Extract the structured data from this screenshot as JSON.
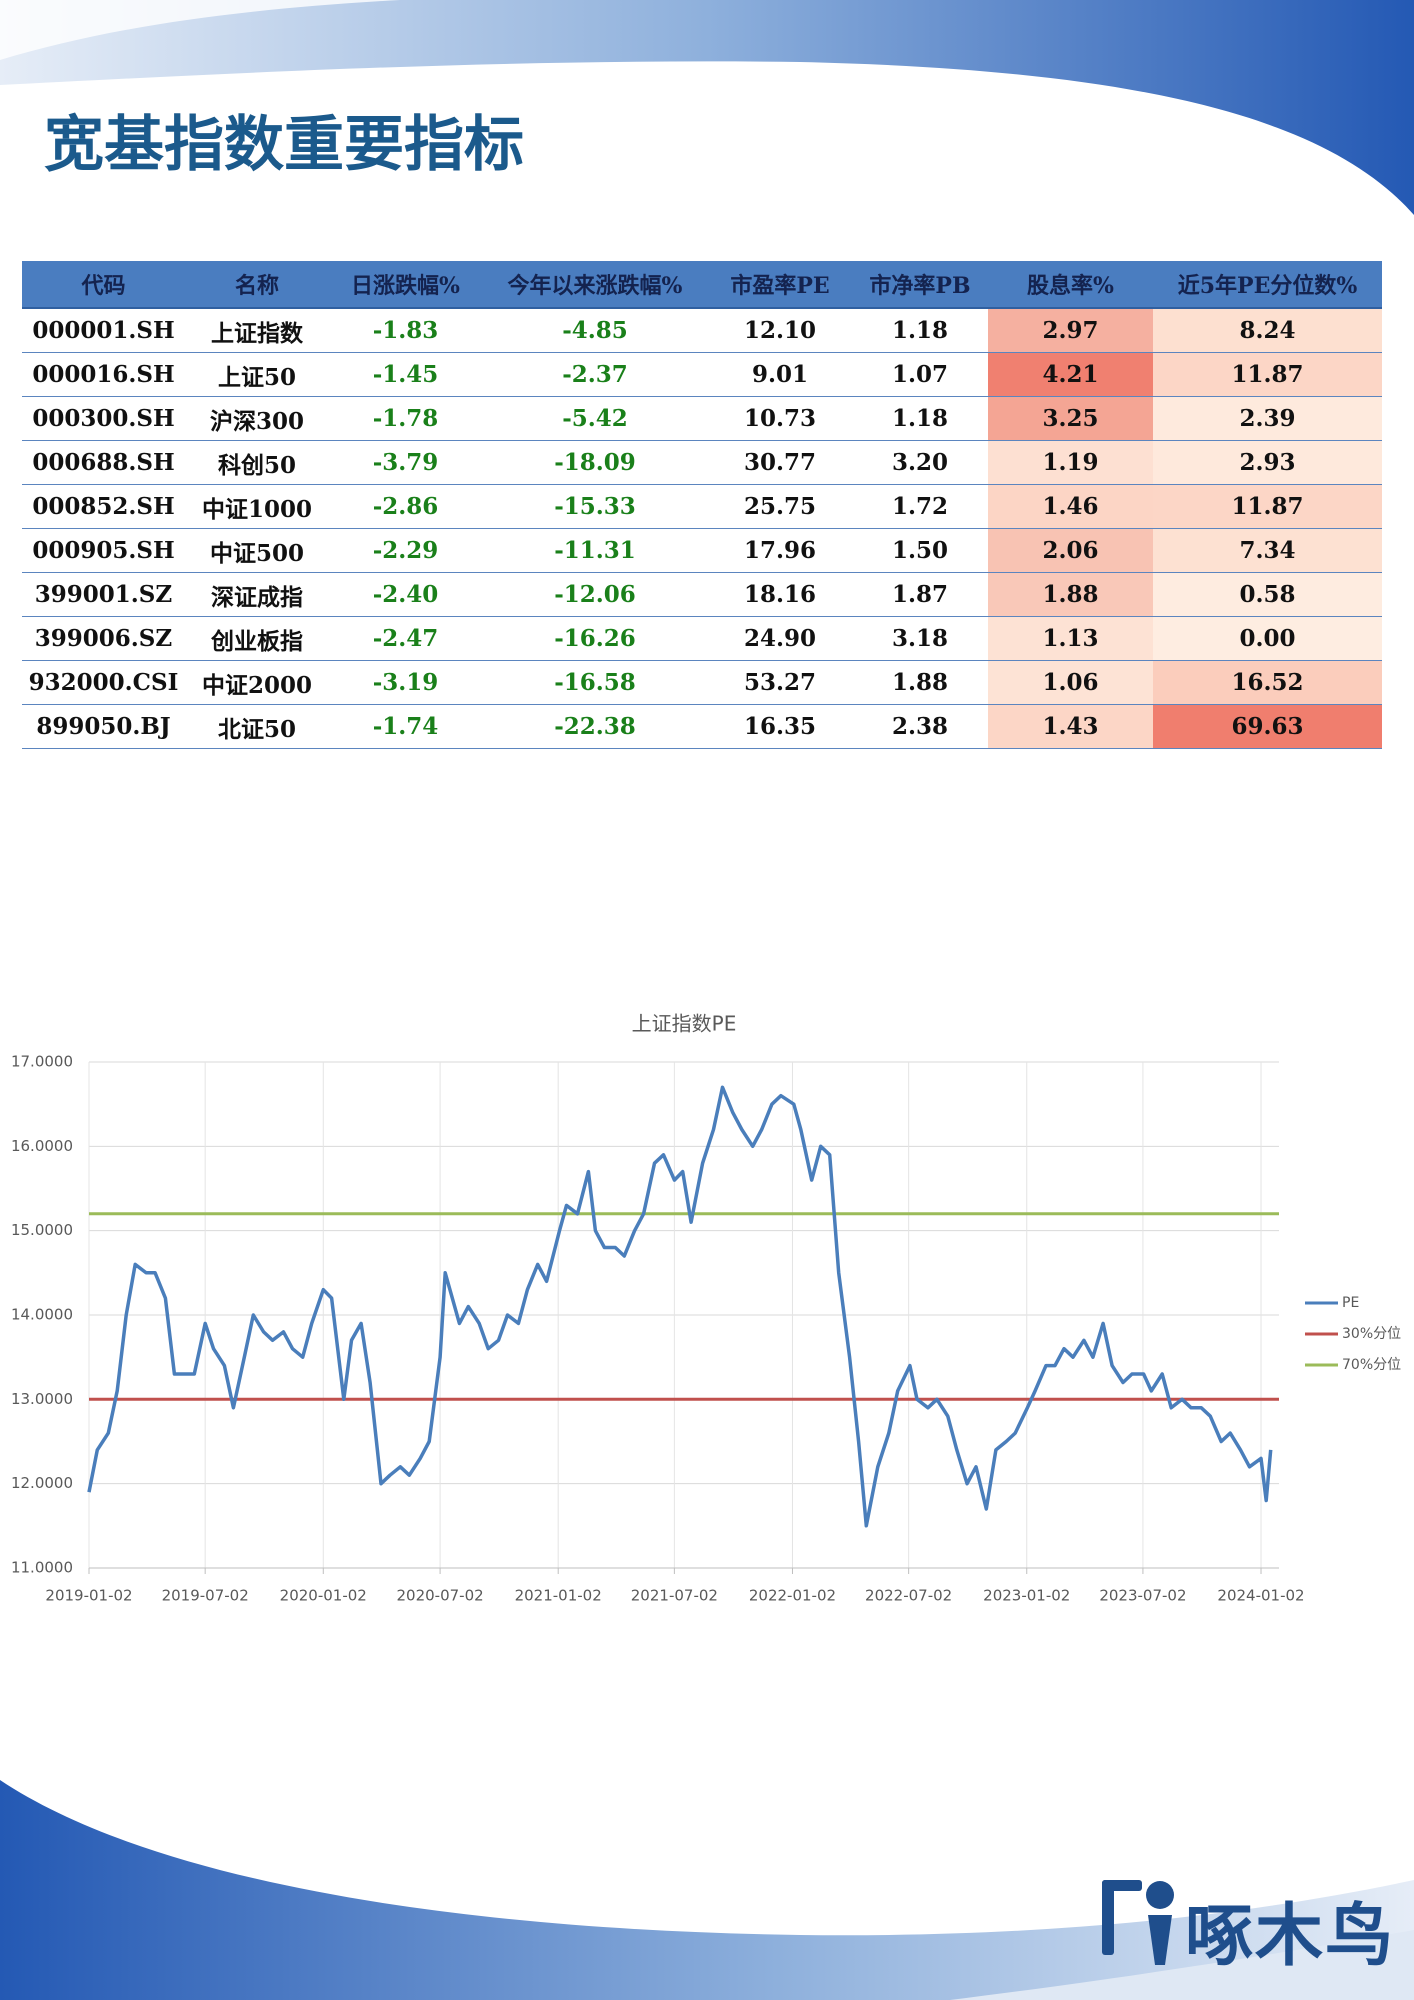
{
  "title": "宽基指数重要指标",
  "logo": "啄木鸟",
  "table": {
    "header": [
      "代码",
      "名称",
      "日涨跌幅%",
      "今年以来涨跌幅%",
      "市盈率PE",
      "市净率PB",
      "股息率%",
      "近5年PE分位数%"
    ],
    "rows": [
      [
        "000001.SH",
        "上证指数",
        "-1.83",
        "-4.85",
        "12.10",
        "1.18",
        "2.97",
        "8.24"
      ],
      [
        "000016.SH",
        "上证50",
        "-1.45",
        "-2.37",
        "9.01",
        "1.07",
        "4.21",
        "11.87"
      ],
      [
        "000300.SH",
        "沪深300",
        "-1.78",
        "-5.42",
        "10.73",
        "1.18",
        "3.25",
        "2.39"
      ],
      [
        "000688.SH",
        "科创50",
        "-3.79",
        "-18.09",
        "30.77",
        "3.20",
        "1.19",
        "2.93"
      ],
      [
        "000852.SH",
        "中证1000",
        "-2.86",
        "-15.33",
        "25.75",
        "1.72",
        "1.46",
        "11.87"
      ],
      [
        "000905.SH",
        "中证500",
        "-2.29",
        "-11.31",
        "17.96",
        "1.50",
        "2.06",
        "7.34"
      ],
      [
        "399001.SZ",
        "深证成指",
        "-2.40",
        "-12.06",
        "18.16",
        "1.87",
        "1.88",
        "0.58"
      ],
      [
        "399006.SZ",
        "创业板指",
        "-2.47",
        "-16.26",
        "24.90",
        "3.18",
        "1.13",
        "0.00"
      ],
      [
        "932000.CSI",
        "中证2000",
        "-3.19",
        "-16.58",
        "53.27",
        "1.88",
        "1.06",
        "16.52"
      ],
      [
        "899050.BJ",
        "北证50",
        "-1.74",
        "-22.38",
        "16.35",
        "2.38",
        "1.43",
        "69.63"
      ]
    ],
    "heat_colors": [
      [
        "#f5b0a0",
        "#fde0d0"
      ],
      [
        "#f08070",
        "#fcd6c6"
      ],
      [
        "#f4a594",
        "#feeadd"
      ],
      [
        "#fde0d2",
        "#fee9dc"
      ],
      [
        "#fcd5c5",
        "#fcd6c6"
      ],
      [
        "#f8c3b3",
        "#fde1d2"
      ],
      [
        "#f9c8b8",
        "#feece0"
      ],
      [
        "#fde2d4",
        "#feede1"
      ],
      [
        "#fde3d5",
        "#fbcdbc"
      ],
      [
        "#fcd6c6",
        "#f07e6e"
      ]
    ]
  },
  "chart_data": {
    "type": "line",
    "title": "上证指数PE",
    "xlim": [
      "2019-01-02",
      "2024-01-30"
    ],
    "xticks": [
      "2019-01-02",
      "2019-07-02",
      "2020-01-02",
      "2020-07-02",
      "2021-01-02",
      "2021-07-02",
      "2022-01-02",
      "2022-07-02",
      "2023-01-02",
      "2023-07-02",
      "2024-01-02"
    ],
    "ylim": [
      11,
      17
    ],
    "yticks": [
      {
        "value": 11,
        "label": "11.0000"
      },
      {
        "value": 12,
        "label": "12.0000"
      },
      {
        "value": 13,
        "label": "13.0000"
      },
      {
        "value": 14,
        "label": "14.0000"
      },
      {
        "value": 15,
        "label": "15.0000"
      },
      {
        "value": 16,
        "label": "16.0000"
      },
      {
        "value": 17,
        "label": "17.0000"
      }
    ],
    "grid": true,
    "legend": "right",
    "series": [
      {
        "name": "PE",
        "color": "#4a7ebb",
        "x": [
          "2019-01-02",
          "2019-01-15",
          "2019-02-01",
          "2019-02-15",
          "2019-03-01",
          "2019-03-15",
          "2019-04-01",
          "2019-04-15",
          "2019-05-01",
          "2019-05-15",
          "2019-06-01",
          "2019-06-15",
          "2019-07-02",
          "2019-07-15",
          "2019-08-01",
          "2019-08-15",
          "2019-09-01",
          "2019-09-15",
          "2019-10-01",
          "2019-10-15",
          "2019-11-01",
          "2019-11-15",
          "2019-12-01",
          "2019-12-15",
          "2020-01-02",
          "2020-01-15",
          "2020-02-03",
          "2020-02-15",
          "2020-03-01",
          "2020-03-15",
          "2020-04-01",
          "2020-04-15",
          "2020-05-01",
          "2020-05-15",
          "2020-06-01",
          "2020-06-15",
          "2020-07-02",
          "2020-07-10",
          "2020-08-01",
          "2020-08-15",
          "2020-09-01",
          "2020-09-15",
          "2020-10-01",
          "2020-10-15",
          "2020-11-01",
          "2020-11-15",
          "2020-12-01",
          "2020-12-15",
          "2021-01-04",
          "2021-01-15",
          "2021-02-01",
          "2021-02-18",
          "2021-03-01",
          "2021-03-15",
          "2021-04-01",
          "2021-04-15",
          "2021-05-01",
          "2021-05-15",
          "2021-06-01",
          "2021-06-15",
          "2021-07-02",
          "2021-07-15",
          "2021-07-28",
          "2021-08-15",
          "2021-09-01",
          "2021-09-15",
          "2021-10-01",
          "2021-10-15",
          "2021-11-01",
          "2021-11-15",
          "2021-12-01",
          "2021-12-15",
          "2022-01-04",
          "2022-01-15",
          "2022-02-01",
          "2022-02-15",
          "2022-03-01",
          "2022-03-15",
          "2022-04-01",
          "2022-04-15",
          "2022-04-27",
          "2022-05-15",
          "2022-06-01",
          "2022-06-15",
          "2022-07-04",
          "2022-07-15",
          "2022-08-01",
          "2022-08-15",
          "2022-09-01",
          "2022-09-15",
          "2022-10-01",
          "2022-10-15",
          "2022-10-31",
          "2022-11-15",
          "2022-12-01",
          "2022-12-15",
          "2023-01-03",
          "2023-01-15",
          "2023-02-01",
          "2023-02-15",
          "2023-03-01",
          "2023-03-15",
          "2023-04-01",
          "2023-04-15",
          "2023-05-01",
          "2023-05-15",
          "2023-06-01",
          "2023-06-15",
          "2023-07-03",
          "2023-07-15",
          "2023-08-01",
          "2023-08-15",
          "2023-09-01",
          "2023-09-15",
          "2023-10-01",
          "2023-10-15",
          "2023-11-01",
          "2023-11-15",
          "2023-12-01",
          "2023-12-15",
          "2024-01-02",
          "2024-01-10",
          "2024-01-17"
        ],
        "values": [
          11.9,
          12.4,
          12.6,
          13.1,
          14.0,
          14.6,
          14.5,
          14.5,
          14.2,
          13.3,
          13.3,
          13.3,
          13.9,
          13.6,
          13.4,
          12.9,
          13.5,
          14.0,
          13.8,
          13.7,
          13.8,
          13.6,
          13.5,
          13.9,
          14.3,
          14.2,
          13.0,
          13.7,
          13.9,
          13.2,
          12.0,
          12.1,
          12.2,
          12.1,
          12.3,
          12.5,
          13.5,
          14.5,
          13.9,
          14.1,
          13.9,
          13.6,
          13.7,
          14.0,
          13.9,
          14.3,
          14.6,
          14.4,
          15.0,
          15.3,
          15.2,
          15.7,
          15.0,
          14.8,
          14.8,
          14.7,
          15.0,
          15.2,
          15.8,
          15.9,
          15.6,
          15.7,
          15.1,
          15.8,
          16.2,
          16.7,
          16.4,
          16.2,
          16.0,
          16.2,
          16.5,
          16.6,
          16.5,
          16.2,
          15.6,
          16.0,
          15.9,
          14.5,
          13.5,
          12.5,
          11.5,
          12.2,
          12.6,
          13.1,
          13.4,
          13.0,
          12.9,
          13.0,
          12.8,
          12.4,
          12.0,
          12.2,
          11.7,
          12.4,
          12.5,
          12.6,
          12.9,
          13.1,
          13.4,
          13.4,
          13.6,
          13.5,
          13.7,
          13.5,
          13.9,
          13.4,
          13.2,
          13.3,
          13.3,
          13.1,
          13.3,
          12.9,
          13.0,
          12.9,
          12.9,
          12.8,
          12.5,
          12.6,
          12.4,
          12.2,
          12.3,
          11.8,
          12.4
        ]
      },
      {
        "name": "30%分位",
        "color": "#c0504d",
        "x": [
          "2019-01-02",
          "2024-01-30"
        ],
        "values": [
          13.0,
          13.0
        ]
      },
      {
        "name": "70%分位",
        "color": "#9bbb59",
        "x": [
          "2019-01-02",
          "2024-01-30"
        ],
        "values": [
          15.2,
          15.2
        ]
      }
    ]
  }
}
